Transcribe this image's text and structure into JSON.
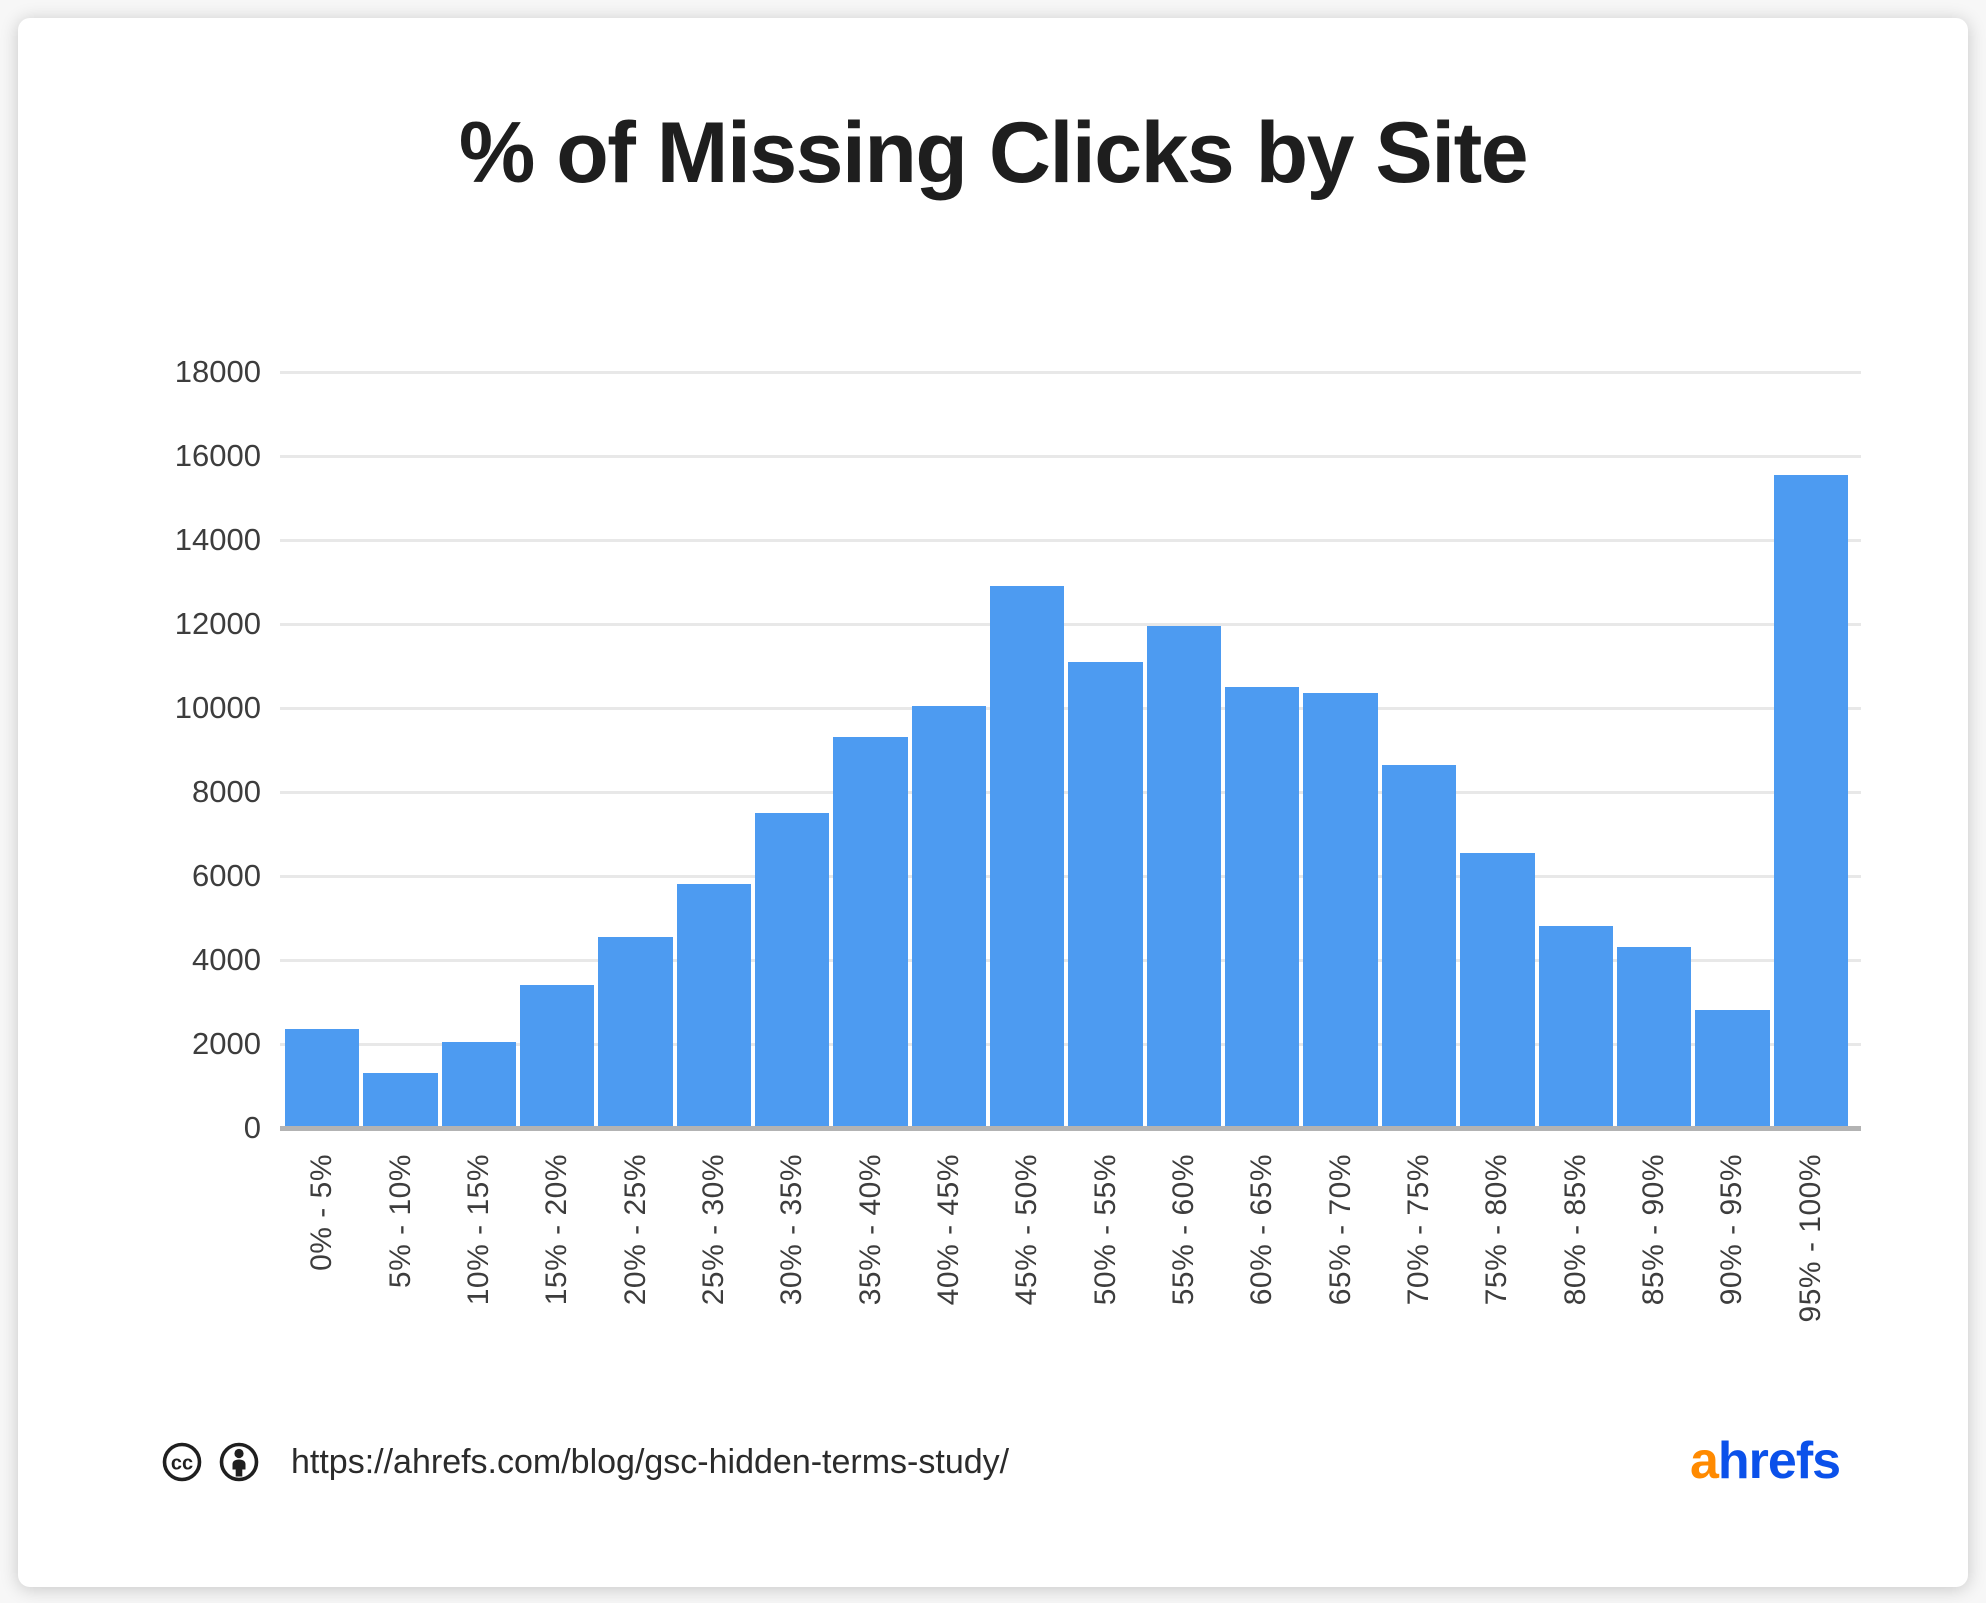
{
  "title": "% of Missing Clicks by Site",
  "chart_data": {
    "type": "bar",
    "title": "% of Missing Clicks by Site",
    "xlabel": "",
    "ylabel": "",
    "categories": [
      "0% - 5%",
      "5% - 10%",
      "10% - 15%",
      "15% - 20%",
      "20% - 25%",
      "25% - 30%",
      "30% - 35%",
      "35% - 40%",
      "40% - 45%",
      "45% - 50%",
      "50% - 55%",
      "55% - 60%",
      "60% - 65%",
      "65% - 70%",
      "70% - 75%",
      "75% - 80%",
      "80% - 85%",
      "85% - 90%",
      "90% - 95%",
      "95% - 100%"
    ],
    "values": [
      2350,
      1300,
      2050,
      3400,
      4550,
      5800,
      7500,
      9300,
      10050,
      12900,
      11100,
      11950,
      10500,
      10350,
      8650,
      6550,
      4800,
      4300,
      2800,
      15550
    ],
    "ylim": [
      0,
      18000
    ],
    "y_ticks": [
      0,
      2000,
      4000,
      6000,
      8000,
      10000,
      12000,
      14000,
      16000,
      18000
    ],
    "grid": true,
    "legend": "none",
    "bar_color": "#4d9bf1"
  },
  "footer": {
    "license_icons": [
      "cc-icon",
      "attribution-icon"
    ],
    "url": "https://ahrefs.com/blog/gsc-hidden-terms-study/"
  },
  "logo": {
    "text_orange": "a",
    "text_blue": "hrefs"
  },
  "colors": {
    "bar": "#4d9bf1",
    "gridline": "#e8e8e8",
    "axis_line": "#b3b3b3",
    "title_text": "#1e1e1e",
    "tick_text": "#3d3d3d",
    "url_text": "#2b2b2b",
    "logo_orange": "#ff8a00",
    "logo_blue": "#0b51ea",
    "card_background": "#ffffff"
  }
}
